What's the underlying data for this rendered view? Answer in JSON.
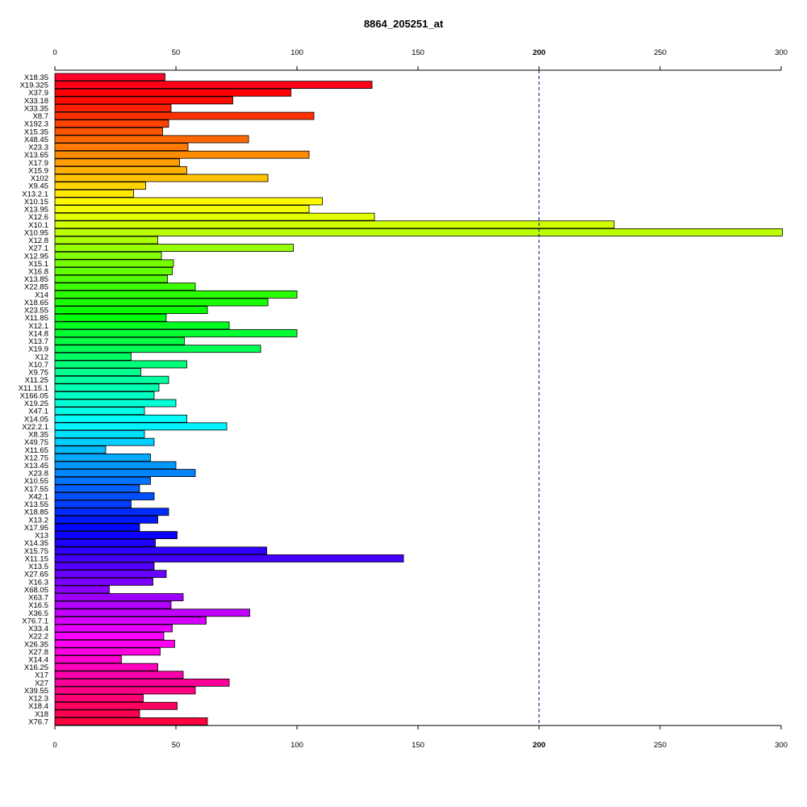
{
  "chart_data": {
    "type": "bar",
    "orientation": "horizontal",
    "title": "8864_205251_at",
    "xlabel": "",
    "ylabel": "",
    "xlim": [
      0,
      300
    ],
    "xticks": [
      0,
      50,
      100,
      150,
      200,
      250,
      300
    ],
    "xtick_labels": [
      "0",
      "50",
      "100",
      "150",
      "200",
      "250",
      "300"
    ],
    "axis_top_and_bottom": true,
    "grid": false,
    "reference_line": {
      "x": 200,
      "style": "dashed",
      "color": "#000080"
    },
    "color_scheme": "rainbow",
    "categories": [
      "X18.35",
      "X19.325",
      "X37.9",
      "X33.18",
      "X33.35",
      "X8.7",
      "X192.3",
      "X15.35",
      "X48.45",
      "X23.3",
      "X13.65",
      "X17.9",
      "X15.9",
      "X102",
      "X9.45",
      "X13.2.1",
      "X10.15",
      "X13.95",
      "X12.6",
      "X10.1",
      "X10.95",
      "X12.8",
      "X27.1",
      "X12.95",
      "X15.1",
      "X16.8",
      "X13.85",
      "X22.85",
      "X14",
      "X18.65",
      "X23.55",
      "X11.85",
      "X12.1",
      "X14.8",
      "X13.7",
      "X19.9",
      "X12",
      "X10.7",
      "X9.75",
      "X11.25",
      "X11.15.1",
      "X166.05",
      "X19.25",
      "X47.1",
      "X14.05",
      "X22.2.1",
      "X8.35",
      "X49.75",
      "X11.65",
      "X12.75",
      "X13.45",
      "X23.8",
      "X10.55",
      "X17.55",
      "X42.1",
      "X13.55",
      "X18.85",
      "X13.2",
      "X17.95",
      "X13",
      "X14.35",
      "X15.75",
      "X11.15",
      "X13.5",
      "X27.65",
      "X16.3",
      "X68.05",
      "X63.7",
      "X16.5",
      "X36.5",
      "X76.7.1",
      "X33.4",
      "X22.2",
      "X26.35",
      "X27.8",
      "X14.4",
      "X16.25",
      "X17",
      "X27",
      "X39.55",
      "X12.3",
      "X18.4",
      "X18",
      "X76.7"
    ],
    "values": [
      45.5,
      131,
      97.5,
      73.5,
      48,
      107,
      47,
      44.5,
      80,
      55,
      105,
      51.5,
      54.5,
      88,
      37.5,
      32.5,
      110.5,
      105,
      132,
      231,
      300.5,
      42.5,
      98.5,
      44,
      49,
      48.5,
      46.5,
      58,
      100,
      88,
      63,
      46,
      72,
      100,
      53.5,
      85,
      31.5,
      54.5,
      35.5,
      47,
      43,
      41,
      50,
      37,
      54.5,
      71,
      37,
      41,
      21,
      39.5,
      50,
      58,
      39.5,
      35,
      41,
      31.5,
      47,
      42.5,
      35,
      50.5,
      41.5,
      87.5,
      144,
      41,
      46,
      40.5,
      22.5,
      53,
      48,
      80.5,
      62.5,
      48.5,
      45,
      49.5,
      43.5,
      27.5,
      42.5,
      53,
      72,
      58,
      36.5,
      50.5,
      35,
      63
    ]
  }
}
